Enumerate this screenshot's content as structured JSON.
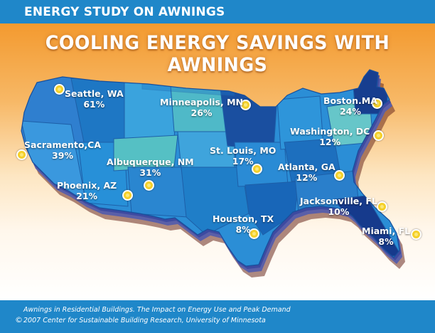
{
  "header": {
    "banner": "ENERGY STUDY ON AWNINGS",
    "title": "COOLING ENERGY SAVINGS WITH AWNINGS"
  },
  "colors": {
    "header_blue": "#1f87c9",
    "sky_top": "#f39a2f",
    "marker": "#f5d02a"
  },
  "cities": [
    {
      "name": "Seattle, WA",
      "saving": "61%"
    },
    {
      "name": "Minneapolis, MN",
      "saving": "26%"
    },
    {
      "name": "Boston.MA",
      "saving": "24%"
    },
    {
      "name": "Sacramento,CA",
      "saving": "39%"
    },
    {
      "name": "Washington, DC",
      "saving": "12%"
    },
    {
      "name": "St. Louis, MO",
      "saving": "17%"
    },
    {
      "name": "Albuquerque, NM",
      "saving": "31%"
    },
    {
      "name": "Atlanta, GA",
      "saving": "12%"
    },
    {
      "name": "Phoenix, AZ",
      "saving": "21%"
    },
    {
      "name": "Jacksonville, FL",
      "saving": "10%"
    },
    {
      "name": "Houston, TX",
      "saving": "8%"
    },
    {
      "name": "Miami, FL",
      "saving": "8%"
    }
  ],
  "footer": {
    "source": "Awnings in Residential Buildings. The Impact on Energy Use and Peak Demand",
    "copyright": "2007 Center for Sustainable Building Research, University of Minnesota",
    "copyright_symbol": "©"
  }
}
